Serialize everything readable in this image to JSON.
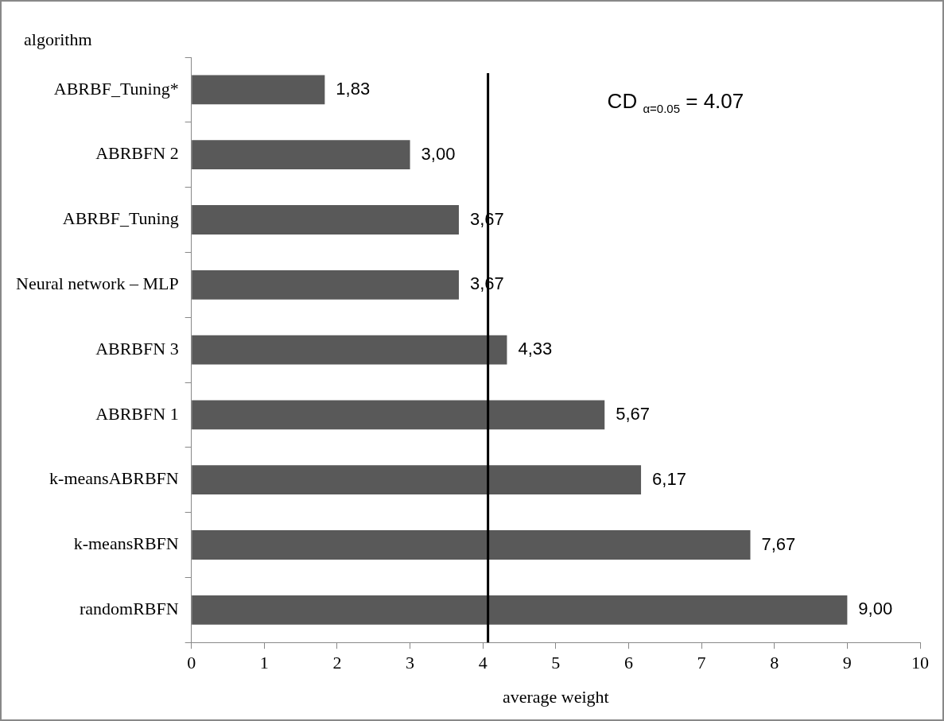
{
  "chart_data": {
    "type": "bar",
    "orientation": "horizontal",
    "ylabel": "algorithm",
    "xlabel": "average weight",
    "categories": [
      "ABRBF_Tuning*",
      "ABRBFN 2",
      "ABRBF_Tuning",
      "Neural network – MLP",
      "ABRBFN 3",
      "ABRBFN 1",
      "k-meansABRBFN",
      "k-meansRBFN",
      "randomRBFN"
    ],
    "values": [
      1.83,
      3.0,
      3.67,
      3.67,
      4.33,
      5.67,
      6.17,
      7.67,
      9.0
    ],
    "value_labels": [
      "1,83",
      "3,00",
      "3,67",
      "3,67",
      "4,33",
      "5,67",
      "6,17",
      "7,67",
      "9,00"
    ],
    "color": "#595959",
    "xlim": [
      0,
      10
    ],
    "xticks": [
      0,
      1,
      2,
      3,
      4,
      5,
      6,
      7,
      8,
      9,
      10
    ],
    "ref_lines": [
      {
        "axis": "x",
        "value": 4.07,
        "label": "CD $_{α=0.05}$ = 4.07",
        "color": "#000000"
      }
    ],
    "legend": false
  }
}
